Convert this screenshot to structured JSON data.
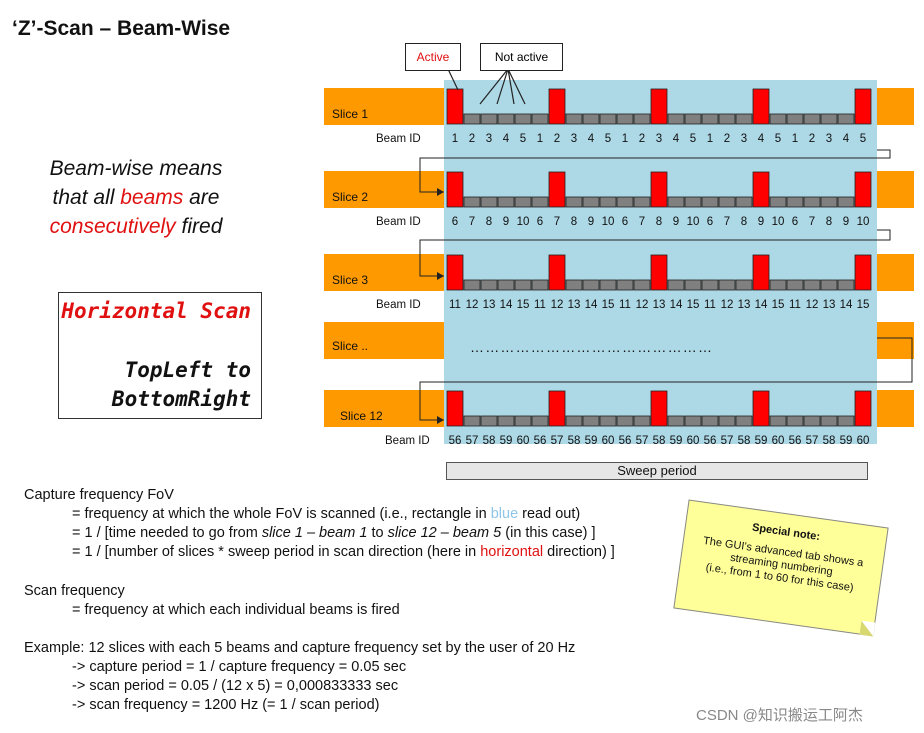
{
  "title": "‘Z’-Scan – Beam-Wise",
  "legend": {
    "active": "Active",
    "not_active": "Not active"
  },
  "beamwise_text": {
    "line1": "Beam-wise means",
    "line2a": "that all ",
    "line2b": "beams",
    "line2c": " are",
    "line3a": "consecutively",
    "line3b": " fired"
  },
  "scan_box": {
    "title": "Horizontal Scan",
    "line1": "TopLeft to",
    "line2": "BottomRight"
  },
  "slices": [
    {
      "label": "Slice 1",
      "beam_id_label": "Beam ID",
      "beam_ids": [
        "1",
        "2",
        "3",
        "4",
        "5"
      ]
    },
    {
      "label": "Slice 2",
      "beam_id_label": "Beam ID",
      "beam_ids": [
        "6",
        "7",
        "8",
        "9",
        "10"
      ]
    },
    {
      "label": "Slice 3",
      "beam_id_label": "Beam ID",
      "beam_ids": [
        "11",
        "12",
        "13",
        "14",
        "15"
      ]
    },
    {
      "label": "Slice ..",
      "beam_id_label": "",
      "beam_ids": []
    },
    {
      "label": "Slice 12",
      "beam_id_label": "Beam ID",
      "beam_ids": [
        "56",
        "57",
        "58",
        "59",
        "60"
      ]
    }
  ],
  "active_beam_index": [
    0,
    1,
    2,
    3,
    4
  ],
  "ellipsis_row": "…………………………………………",
  "sweep_period": "Sweep period",
  "colors": {
    "fov": "#add8e6",
    "slice_bar": "#ff9900",
    "active": "#ff0000",
    "inactive": "#808080"
  },
  "capture": {
    "heading": "Capture frequency FoV",
    "l1a": "= frequency at which the whole FoV is scanned (i.e., rectangle in ",
    "l1b": "blue",
    "l1c": " read out)",
    "l2a": "= 1 / [time needed to go from ",
    "l2b": "slice 1 – beam 1",
    "l2c": " to ",
    "l2d": "slice 12 – beam 5",
    "l2e": " (in this case) ]",
    "l3a": "= 1 / [number of slices * sweep period in scan direction (here in ",
    "l3b": "horizontal",
    "l3c": " direction) ]"
  },
  "scanfreq": {
    "heading": "Scan frequency",
    "line": "= frequency at which each individual beams is fired"
  },
  "example": {
    "heading": "Example:  12 slices with each 5 beams and capture frequency set by the user of 20 Hz",
    "l1": "-> capture period = 1 / capture frequency = 0.05 sec",
    "l2": "-> scan period = 0.05 / (12 x 5) = 0,000833333  sec",
    "l3": "-> scan frequency = 1200 Hz (= 1 / scan period)"
  },
  "note": {
    "title": "Special note:",
    "l1": "The GUI's advanced tab shows a",
    "l2": "streaming numbering",
    "l3": "(i.e., from 1 to 60 for this case)"
  },
  "watermark": "CSDN @知识搬运工阿杰"
}
